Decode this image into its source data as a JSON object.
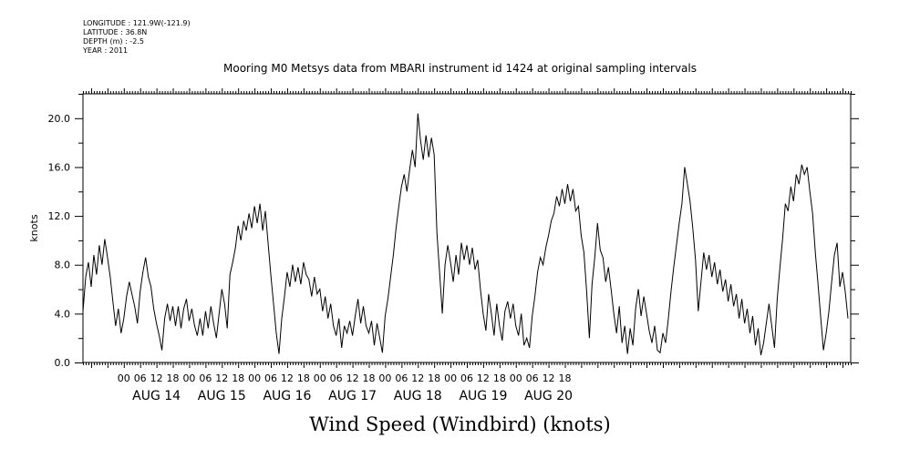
{
  "meta": {
    "longitude": "LONGITUDE : 121.9W(-121.9)",
    "latitude": "LATITUDE : 36.8N",
    "depth": "DEPTH (m) : -2.5",
    "year": "YEAR : 2011"
  },
  "chart_data": {
    "type": "line",
    "title": "Mooring M0 Metsys data from MBARI instrument id 1424 at original sampling intervals",
    "xlabel": "Wind Speed (Windbird) (knots)",
    "ylabel": "knots",
    "ylim": [
      0,
      22
    ],
    "xlim_hours": [
      -15,
      267
    ],
    "y_ticks": [
      {
        "value": 0,
        "label": "0.0"
      },
      {
        "value": 4,
        "label": "4.0"
      },
      {
        "value": 8,
        "label": "8.0"
      },
      {
        "value": 12,
        "label": "12.0"
      },
      {
        "value": 16,
        "label": "16.0"
      },
      {
        "value": 20,
        "label": "20.0"
      }
    ],
    "x_hour_labels": [
      "00",
      "06",
      "12",
      "18",
      "00",
      "06",
      "12",
      "18",
      "00",
      "06",
      "12",
      "18",
      "00",
      "06",
      "12",
      "18",
      "00",
      "06",
      "12",
      "18",
      "00",
      "06",
      "12",
      "18",
      "00",
      "06",
      "12",
      "18"
    ],
    "x_day_labels": [
      "AUG 14",
      "AUG 15",
      "AUG 16",
      "AUG 17",
      "AUG 18",
      "AUG 19",
      "AUG 20"
    ],
    "series": [
      {
        "color": "#000000",
        "points": [
          [
            -15,
            4.2
          ],
          [
            -14,
            7.0
          ],
          [
            -13,
            8.2
          ],
          [
            -12,
            6.2
          ],
          [
            -11,
            8.8
          ],
          [
            -10,
            7.2
          ],
          [
            -9,
            9.6
          ],
          [
            -8,
            8.0
          ],
          [
            -7,
            10.1
          ],
          [
            -6,
            8.6
          ],
          [
            -5,
            7.0
          ],
          [
            -4,
            5.0
          ],
          [
            -3,
            3.0
          ],
          [
            -2,
            4.4
          ],
          [
            -1,
            2.4
          ],
          [
            0,
            3.6
          ],
          [
            1,
            5.4
          ],
          [
            2,
            6.6
          ],
          [
            3,
            5.6
          ],
          [
            4,
            4.6
          ],
          [
            5,
            3.2
          ],
          [
            6,
            5.8
          ],
          [
            7,
            7.4
          ],
          [
            8,
            8.6
          ],
          [
            9,
            7.0
          ],
          [
            10,
            6.2
          ],
          [
            11,
            4.4
          ],
          [
            12,
            3.2
          ],
          [
            13,
            2.2
          ],
          [
            14,
            1.0
          ],
          [
            15,
            3.6
          ],
          [
            16,
            4.8
          ],
          [
            17,
            3.4
          ],
          [
            18,
            4.6
          ],
          [
            19,
            3.0
          ],
          [
            20,
            4.6
          ],
          [
            21,
            2.8
          ],
          [
            22,
            4.4
          ],
          [
            23,
            5.2
          ],
          [
            24,
            3.4
          ],
          [
            25,
            4.4
          ],
          [
            26,
            3.0
          ],
          [
            27,
            2.2
          ],
          [
            28,
            3.6
          ],
          [
            29,
            2.2
          ],
          [
            30,
            4.2
          ],
          [
            31,
            2.8
          ],
          [
            32,
            4.6
          ],
          [
            33,
            3.2
          ],
          [
            34,
            2.0
          ],
          [
            35,
            4.0
          ],
          [
            36,
            6.0
          ],
          [
            37,
            4.8
          ],
          [
            38,
            2.8
          ],
          [
            39,
            7.2
          ],
          [
            40,
            8.2
          ],
          [
            41,
            9.4
          ],
          [
            42,
            11.2
          ],
          [
            43,
            10.0
          ],
          [
            44,
            11.6
          ],
          [
            45,
            10.8
          ],
          [
            46,
            12.2
          ],
          [
            47,
            11.0
          ],
          [
            48,
            12.8
          ],
          [
            49,
            11.4
          ],
          [
            50,
            13.0
          ],
          [
            51,
            10.8
          ],
          [
            52,
            12.4
          ],
          [
            53,
            9.8
          ],
          [
            54,
            7.2
          ],
          [
            55,
            4.8
          ],
          [
            56,
            2.4
          ],
          [
            57,
            0.7
          ],
          [
            58,
            3.6
          ],
          [
            59,
            5.4
          ],
          [
            60,
            7.4
          ],
          [
            61,
            6.2
          ],
          [
            62,
            8.0
          ],
          [
            63,
            6.6
          ],
          [
            64,
            7.8
          ],
          [
            65,
            6.4
          ],
          [
            66,
            8.2
          ],
          [
            67,
            7.2
          ],
          [
            68,
            6.8
          ],
          [
            69,
            5.4
          ],
          [
            70,
            7.0
          ],
          [
            71,
            5.6
          ],
          [
            72,
            6.0
          ],
          [
            73,
            4.2
          ],
          [
            74,
            5.4
          ],
          [
            75,
            3.6
          ],
          [
            76,
            4.8
          ],
          [
            77,
            3.0
          ],
          [
            78,
            2.2
          ],
          [
            79,
            3.6
          ],
          [
            80,
            1.2
          ],
          [
            81,
            3.0
          ],
          [
            82,
            2.4
          ],
          [
            83,
            3.4
          ],
          [
            84,
            2.2
          ],
          [
            85,
            3.8
          ],
          [
            86,
            5.2
          ],
          [
            87,
            3.2
          ],
          [
            88,
            4.6
          ],
          [
            89,
            3.0
          ],
          [
            90,
            2.4
          ],
          [
            91,
            3.4
          ],
          [
            92,
            1.4
          ],
          [
            93,
            3.2
          ],
          [
            94,
            2.0
          ],
          [
            95,
            0.8
          ],
          [
            96,
            3.8
          ],
          [
            97,
            5.2
          ],
          [
            98,
            7.0
          ],
          [
            99,
            8.8
          ],
          [
            100,
            11.0
          ],
          [
            101,
            12.8
          ],
          [
            102,
            14.4
          ],
          [
            103,
            15.4
          ],
          [
            104,
            14.0
          ],
          [
            105,
            15.8
          ],
          [
            106,
            17.4
          ],
          [
            107,
            16.0
          ],
          [
            108,
            20.4
          ],
          [
            109,
            18.2
          ],
          [
            110,
            16.6
          ],
          [
            111,
            18.6
          ],
          [
            112,
            16.8
          ],
          [
            113,
            18.4
          ],
          [
            114,
            17.0
          ],
          [
            115,
            10.6
          ],
          [
            116,
            7.4
          ],
          [
            117,
            4.0
          ],
          [
            118,
            8.0
          ],
          [
            119,
            9.6
          ],
          [
            120,
            8.2
          ],
          [
            121,
            6.6
          ],
          [
            122,
            8.8
          ],
          [
            123,
            7.2
          ],
          [
            124,
            9.8
          ],
          [
            125,
            8.4
          ],
          [
            126,
            9.6
          ],
          [
            127,
            8.0
          ],
          [
            128,
            9.4
          ],
          [
            129,
            7.6
          ],
          [
            130,
            8.4
          ],
          [
            131,
            6.0
          ],
          [
            132,
            4.0
          ],
          [
            133,
            2.6
          ],
          [
            134,
            5.6
          ],
          [
            135,
            4.0
          ],
          [
            136,
            2.2
          ],
          [
            137,
            4.8
          ],
          [
            138,
            3.0
          ],
          [
            139,
            1.8
          ],
          [
            140,
            4.2
          ],
          [
            141,
            5.0
          ],
          [
            142,
            3.6
          ],
          [
            143,
            4.8
          ],
          [
            144,
            3.0
          ],
          [
            145,
            2.2
          ],
          [
            146,
            4.0
          ],
          [
            147,
            1.4
          ],
          [
            148,
            2.0
          ],
          [
            149,
            1.2
          ],
          [
            150,
            3.8
          ],
          [
            151,
            5.4
          ],
          [
            152,
            7.4
          ],
          [
            153,
            8.6
          ],
          [
            154,
            8.0
          ],
          [
            155,
            9.4
          ],
          [
            156,
            10.4
          ],
          [
            157,
            11.6
          ],
          [
            158,
            12.2
          ],
          [
            159,
            13.6
          ],
          [
            160,
            12.8
          ],
          [
            161,
            14.2
          ],
          [
            162,
            13.0
          ],
          [
            163,
            14.6
          ],
          [
            164,
            13.2
          ],
          [
            165,
            14.2
          ],
          [
            166,
            12.4
          ],
          [
            167,
            12.8
          ],
          [
            168,
            10.4
          ],
          [
            169,
            9.0
          ],
          [
            170,
            5.8
          ],
          [
            171,
            2.0
          ],
          [
            172,
            6.4
          ],
          [
            173,
            8.6
          ],
          [
            174,
            11.4
          ],
          [
            175,
            9.2
          ],
          [
            176,
            8.6
          ],
          [
            177,
            6.6
          ],
          [
            178,
            7.8
          ],
          [
            179,
            6.0
          ],
          [
            180,
            4.0
          ],
          [
            181,
            2.4
          ],
          [
            182,
            4.6
          ],
          [
            183,
            1.6
          ],
          [
            184,
            3.0
          ],
          [
            185,
            0.7
          ],
          [
            186,
            2.8
          ],
          [
            187,
            1.4
          ],
          [
            188,
            4.4
          ],
          [
            189,
            6.0
          ],
          [
            190,
            3.8
          ],
          [
            191,
            5.4
          ],
          [
            192,
            4.0
          ],
          [
            193,
            2.6
          ],
          [
            194,
            1.6
          ],
          [
            195,
            3.0
          ],
          [
            196,
            1.0
          ],
          [
            197,
            0.8
          ],
          [
            198,
            2.4
          ],
          [
            199,
            1.6
          ],
          [
            200,
            3.6
          ],
          [
            201,
            5.8
          ],
          [
            202,
            7.8
          ],
          [
            203,
            9.6
          ],
          [
            204,
            11.4
          ],
          [
            205,
            13.0
          ],
          [
            206,
            16.0
          ],
          [
            207,
            14.6
          ],
          [
            208,
            13.2
          ],
          [
            209,
            11.0
          ],
          [
            210,
            8.4
          ],
          [
            211,
            4.2
          ],
          [
            212,
            6.6
          ],
          [
            213,
            9.0
          ],
          [
            214,
            7.6
          ],
          [
            215,
            8.8
          ],
          [
            216,
            7.0
          ],
          [
            217,
            8.2
          ],
          [
            218,
            6.4
          ],
          [
            219,
            7.6
          ],
          [
            220,
            5.8
          ],
          [
            221,
            6.8
          ],
          [
            222,
            5.0
          ],
          [
            223,
            6.4
          ],
          [
            224,
            4.6
          ],
          [
            225,
            5.6
          ],
          [
            226,
            3.6
          ],
          [
            227,
            5.2
          ],
          [
            228,
            3.2
          ],
          [
            229,
            4.4
          ],
          [
            230,
            2.4
          ],
          [
            231,
            3.8
          ],
          [
            232,
            1.4
          ],
          [
            233,
            2.8
          ],
          [
            234,
            0.6
          ],
          [
            235,
            1.6
          ],
          [
            236,
            3.2
          ],
          [
            237,
            4.8
          ],
          [
            238,
            3.0
          ],
          [
            239,
            1.2
          ],
          [
            240,
            5.2
          ],
          [
            241,
            7.8
          ],
          [
            242,
            10.2
          ],
          [
            243,
            13.0
          ],
          [
            244,
            12.4
          ],
          [
            245,
            14.4
          ],
          [
            246,
            13.2
          ],
          [
            247,
            15.4
          ],
          [
            248,
            14.6
          ],
          [
            249,
            16.2
          ],
          [
            250,
            15.4
          ],
          [
            251,
            16.0
          ],
          [
            252,
            14.0
          ],
          [
            253,
            12.2
          ],
          [
            254,
            9.0
          ],
          [
            255,
            6.4
          ],
          [
            256,
            3.6
          ],
          [
            257,
            1.0
          ],
          [
            258,
            2.4
          ],
          [
            259,
            4.2
          ],
          [
            260,
            6.6
          ],
          [
            261,
            8.8
          ],
          [
            262,
            9.8
          ],
          [
            263,
            6.2
          ],
          [
            264,
            7.4
          ],
          [
            265,
            5.8
          ],
          [
            266,
            3.6
          ]
        ]
      }
    ]
  }
}
